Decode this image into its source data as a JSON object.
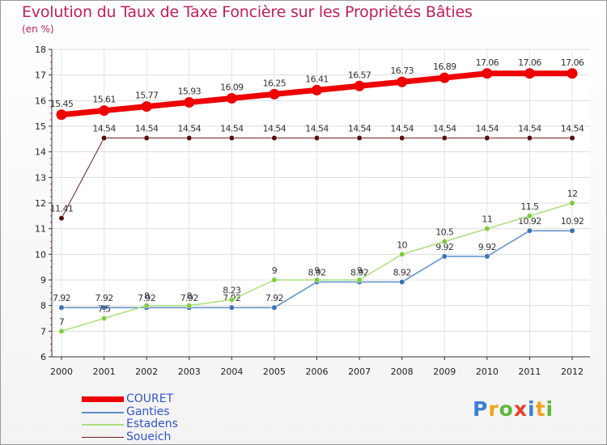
{
  "title": "Evolution du Taux de Taxe Foncière sur les Propriétés Bâties",
  "unit_label": "(en %)",
  "logo": {
    "letters": [
      "P",
      "r",
      "o",
      "x",
      "i",
      "t",
      "i"
    ],
    "colors": [
      "#3a7fd5",
      "#f2a11f",
      "#5db83a",
      "#e5402a",
      "#3a7fd5",
      "#f2a11f",
      "#5db83a"
    ]
  },
  "chart_data": {
    "type": "line",
    "title": "Evolution du Taux de Taxe Foncière sur les Propriétés Bâties",
    "ylabel": "(en %)",
    "xlabel": "",
    "ylim": [
      6,
      18
    ],
    "yticks": [
      "6",
      "7",
      "8",
      "9",
      "10",
      "11",
      "12",
      "13",
      "14",
      "15",
      "16",
      "17",
      "18"
    ],
    "categories": [
      "2000",
      "2001",
      "2002",
      "2003",
      "2004",
      "2005",
      "2006",
      "2007",
      "2008",
      "2009",
      "2010",
      "2011",
      "2012"
    ],
    "series": [
      {
        "name": "Soueich",
        "color": "#6b1a1a",
        "width": 1,
        "marker": "#5a1010",
        "values": [
          11.41,
          14.54,
          14.54,
          14.54,
          14.54,
          14.54,
          14.54,
          14.54,
          14.54,
          14.54,
          14.54,
          14.54,
          14.54
        ],
        "labels": [
          "11.41",
          "14.54",
          "14.54",
          "14.54",
          "14.54",
          "14.54",
          "14.54",
          "14.54",
          "14.54",
          "14.54",
          "14.54",
          "14.54",
          "14.54"
        ]
      },
      {
        "name": "Ganties",
        "color": "#5b8fc7",
        "width": 1.5,
        "marker": "#3a72b5",
        "values": [
          7.92,
          7.92,
          7.92,
          7.92,
          7.92,
          7.92,
          8.92,
          8.92,
          8.92,
          9.92,
          9.92,
          10.92,
          10.92
        ],
        "labels": [
          "7.92",
          "7.92",
          "7.92",
          "7.92",
          "7.92",
          "7.92",
          "8.92",
          "8.92",
          "8.92",
          "9.92",
          "9.92",
          "10.92",
          "10.92"
        ]
      },
      {
        "name": "Estadens",
        "color": "#a8e07a",
        "width": 1.5,
        "marker": "#7ccc3c",
        "values": [
          7,
          7.5,
          8,
          8,
          8.23,
          9,
          9,
          9,
          10,
          10.5,
          11,
          11.5,
          12
        ],
        "labels": [
          "7",
          "7.5",
          "8",
          "8",
          "8.23",
          "9",
          "9",
          "9",
          "10",
          "10.5",
          "11",
          "11.5",
          "12"
        ]
      },
      {
        "name": "COURET",
        "color": "#ee0000",
        "width": 7,
        "marker": "#ee0000",
        "values": [
          15.45,
          15.61,
          15.77,
          15.93,
          16.09,
          16.25,
          16.41,
          16.57,
          16.73,
          16.89,
          17.06,
          17.06,
          17.06
        ],
        "labels": [
          "15.45",
          "15.61",
          "15.77",
          "15.93",
          "16.09",
          "16.25",
          "16.41",
          "16.57",
          "16.73",
          "16.89",
          "17.06",
          "17.06",
          "17.06"
        ]
      }
    ],
    "legend": [
      "COURET",
      "Ganties",
      "Estadens",
      "Soueich"
    ]
  }
}
